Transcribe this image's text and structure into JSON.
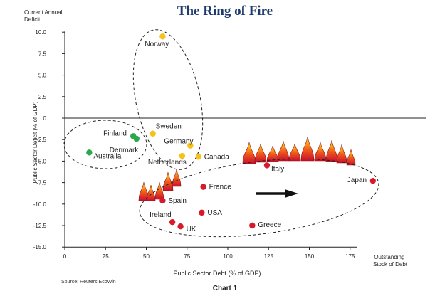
{
  "chart_data": {
    "type": "scatter",
    "title": "The Ring of Fire",
    "ylabel_top": "Current Annual Deficit",
    "ylabel": "Public Sector Deficit (% of GDP)",
    "xlabel": "Public Sector Debt (% of GDP)",
    "xlabel_right": "Outstanding Stock of Debt",
    "xlim": [
      0,
      190
    ],
    "ylim": [
      -15,
      10
    ],
    "xticks": [
      "0",
      "25",
      "50",
      "75",
      "100",
      "125",
      "150",
      "175"
    ],
    "yticks": [
      "10.0",
      "7.5",
      "5.0",
      "2.5",
      "0",
      "-2.5",
      "-5.0",
      "-7.5",
      "-10.0",
      "-12.5",
      "-15.0"
    ],
    "grid": false,
    "source": "Source: Reuters EcoWin",
    "caption": "Chart 1",
    "colors": {
      "green": "#2aa84a",
      "yellow": "#f5c21b",
      "red": "#d7192a",
      "title": "#1f3a6e"
    },
    "points": [
      {
        "name": "Norway",
        "x": 60,
        "y": 9.5,
        "color": "yellow"
      },
      {
        "name": "Sweden",
        "x": 54,
        "y": -1.8,
        "color": "yellow"
      },
      {
        "name": "Germany",
        "x": 77,
        "y": -3.2,
        "color": "yellow"
      },
      {
        "name": "Netherlands",
        "x": 72,
        "y": -4.4,
        "color": "yellow"
      },
      {
        "name": "Canada",
        "x": 82,
        "y": -4.5,
        "color": "yellow"
      },
      {
        "name": "Finland",
        "x": 42,
        "y": -2.1,
        "color": "green"
      },
      {
        "name": "Denmark",
        "x": 44,
        "y": -2.4,
        "color": "green"
      },
      {
        "name": "Australia",
        "x": 15,
        "y": -4.0,
        "color": "green"
      },
      {
        "name": "Italy",
        "x": 124,
        "y": -5.5,
        "color": "red"
      },
      {
        "name": "Japan",
        "x": 189,
        "y": -7.3,
        "color": "red"
      },
      {
        "name": "France",
        "x": 85,
        "y": -8.0,
        "color": "red"
      },
      {
        "name": "Spain",
        "x": 60,
        "y": -9.6,
        "color": "red"
      },
      {
        "name": "USA",
        "x": 84,
        "y": -11.0,
        "color": "red"
      },
      {
        "name": "Ireland",
        "x": 66,
        "y": -12.1,
        "color": "red"
      },
      {
        "name": "UK",
        "x": 71,
        "y": -12.6,
        "color": "red"
      },
      {
        "name": "Greece",
        "x": 115,
        "y": -12.5,
        "color": "red"
      }
    ]
  }
}
